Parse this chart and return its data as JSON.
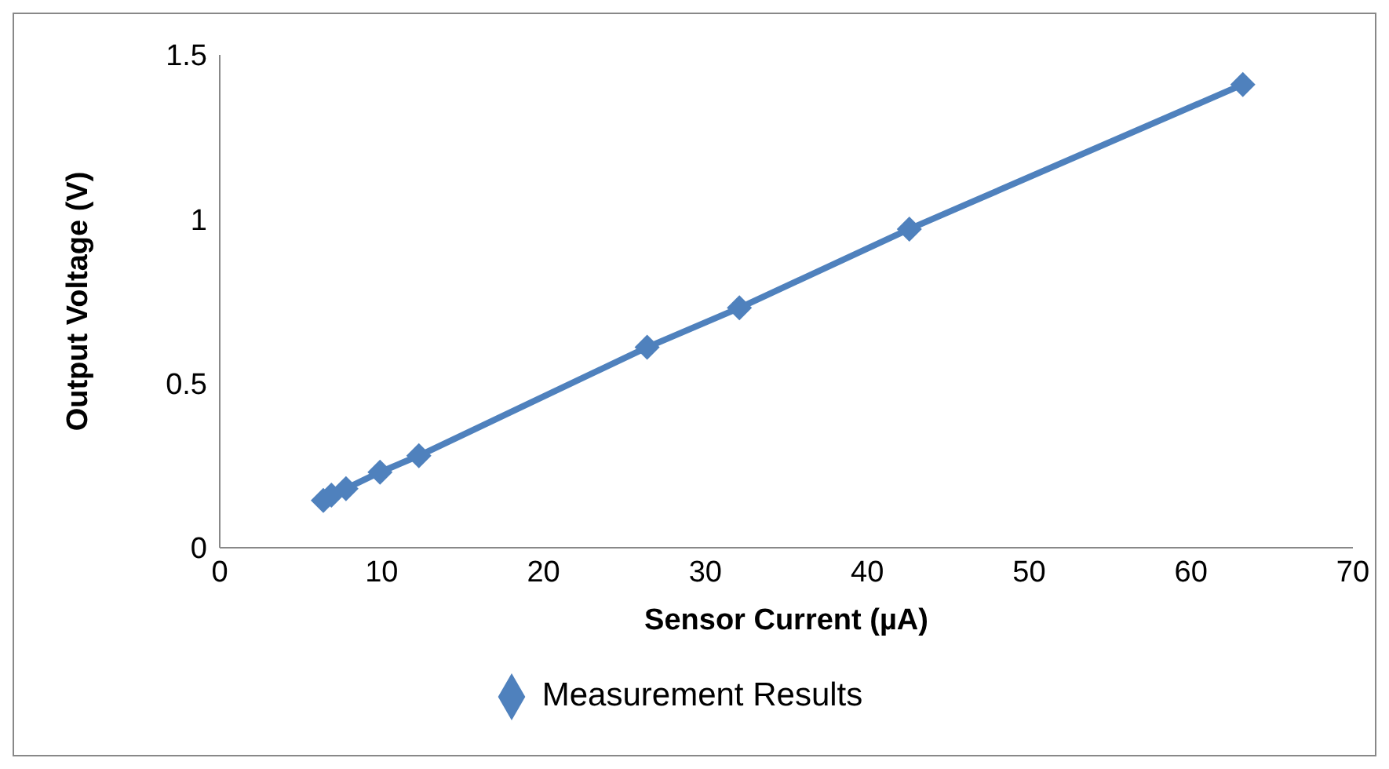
{
  "chart_data": {
    "type": "line",
    "xlabel": "Sensor Current (µA)",
    "ylabel": "Output Voltage (V)",
    "x": [
      6.4,
      6.9,
      7.8,
      9.9,
      12.3,
      26.4,
      32.1,
      42.6,
      63.2
    ],
    "series": [
      {
        "name": "Measurement Results",
        "color": "#4f81bd",
        "values": [
          0.144,
          0.16,
          0.18,
          0.23,
          0.28,
          0.61,
          0.73,
          0.97,
          1.41
        ]
      }
    ],
    "xlim": [
      0,
      70
    ],
    "xticks": [
      0,
      10,
      20,
      30,
      40,
      50,
      60,
      70
    ],
    "ylim": [
      0,
      1.5
    ],
    "yticks": [
      0,
      0.5,
      1,
      1.5
    ],
    "grid": false,
    "legend": "bottom",
    "marker": "diamond",
    "line_style": "solid"
  }
}
